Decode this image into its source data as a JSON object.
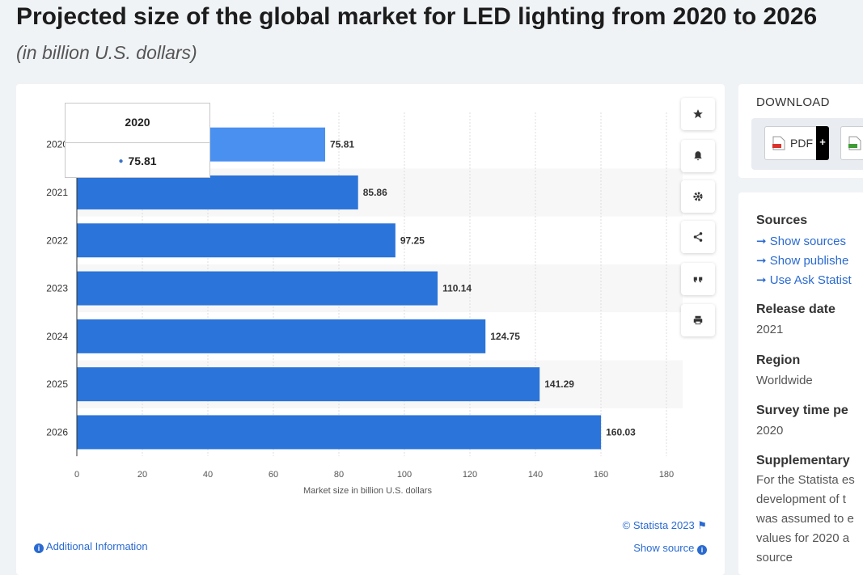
{
  "header": {
    "title": "Projected size of the global market for LED lighting from 2020 to 2026",
    "subtitle": "(in billion U.S. dollars)"
  },
  "chart_data": {
    "type": "bar",
    "orientation": "horizontal",
    "categories": [
      "2020",
      "2021",
      "2022",
      "2023",
      "2024",
      "2025",
      "2026"
    ],
    "values": [
      75.81,
      85.86,
      97.25,
      110.14,
      124.75,
      141.29,
      160.03
    ],
    "data_labels": [
      "75.81",
      "85.86",
      "97.25",
      "110.14",
      "124.75",
      "141.29",
      "160.03"
    ],
    "xlabel": "Market size in billion U.S. dollars",
    "xlim": [
      0,
      180
    ],
    "xticks": [
      "0",
      "20",
      "40",
      "60",
      "80",
      "100",
      "120",
      "140",
      "160",
      "180"
    ],
    "grid": true,
    "bar_color": "#2b74d9",
    "highlight_color": "#4a90f0",
    "highlighted_index": 0
  },
  "tooltip": {
    "title": "2020",
    "value": "75.81"
  },
  "toolbar": {
    "icons": [
      "star-icon",
      "bell-icon",
      "gear-icon",
      "share-icon",
      "quote-icon",
      "print-icon"
    ]
  },
  "footer": {
    "copyright": "© Statista 2023",
    "show_source": "Show source",
    "additional_info": "Additional Information"
  },
  "download": {
    "title": "DOWNLOAD",
    "pdf_label": "PDF",
    "plus": "+"
  },
  "details": {
    "sources_title": "Sources",
    "links": [
      "Show sources",
      "Show publishe",
      "Use Ask Statist"
    ],
    "release_title": "Release date",
    "release_value": "2021",
    "region_title": "Region",
    "region_value": "Worldwide",
    "survey_title": "Survey time pe",
    "survey_value": "2020",
    "supplementary_title": "Supplementary",
    "supplementary_lines": [
      "For the Statista es",
      "development of t",
      "was assumed to e",
      "values for 2020 a",
      "source"
    ]
  }
}
